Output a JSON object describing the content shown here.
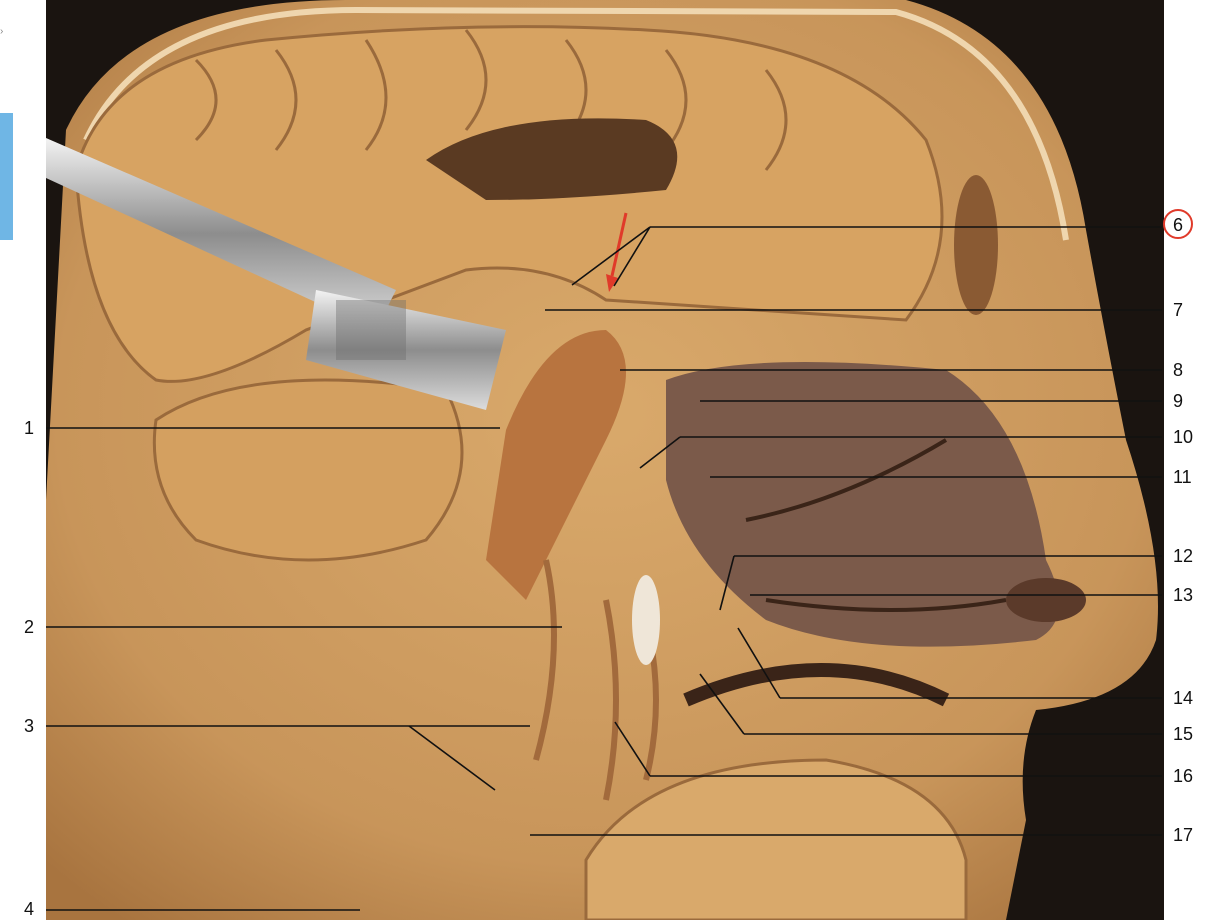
{
  "figure": {
    "left_labels": [
      "1",
      "2",
      "3",
      "4"
    ],
    "right_labels": [
      "6",
      "7",
      "8",
      "9",
      "10",
      "11",
      "12",
      "13",
      "14",
      "15",
      "16",
      "17"
    ],
    "highlighted_label": "6",
    "colors": {
      "tissue": "#c8955a",
      "tissue_light": "#d9a96b",
      "tissue_dark": "#8a5a33",
      "background": "#1a1410",
      "leader_line": "#111111",
      "highlight": "#e03a2a",
      "side_tab": "#6fb6e5"
    }
  }
}
